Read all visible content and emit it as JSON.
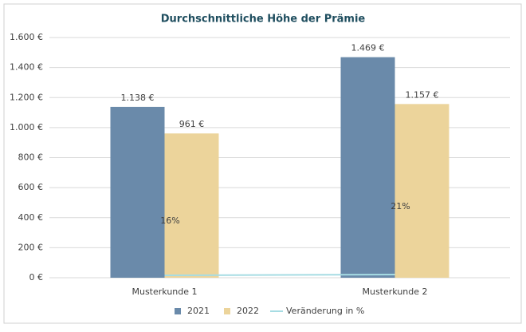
{
  "chart_data": {
    "type": "bar",
    "title": "Durchschnittliche Höhe der Prämie",
    "categories": [
      "Musterkunde 1",
      "Musterkunde 2"
    ],
    "series": [
      {
        "name": "2021",
        "color": "#6a8aaa",
        "values": [
          1138,
          1469
        ],
        "value_labels": [
          "1.138 €",
          "1.469 €"
        ]
      },
      {
        "name": "2022",
        "color": "#ecd49b",
        "values": [
          961,
          1157
        ],
        "value_labels": [
          "961 €",
          "1.157 €"
        ]
      },
      {
        "name": "Veränderung in %",
        "type": "line",
        "color": "#a6dce3",
        "values": [
          16,
          21
        ],
        "value_labels": [
          "16%",
          "21%"
        ]
      }
    ],
    "ylim": [
      0,
      1600
    ],
    "yticks": [
      {
        "value": 0,
        "label": "0 €"
      },
      {
        "value": 200,
        "label": "200 €"
      },
      {
        "value": 400,
        "label": "400 €"
      },
      {
        "value": 600,
        "label": "600 €"
      },
      {
        "value": 800,
        "label": "800 €"
      },
      {
        "value": 1000,
        "label": "1.000 €"
      },
      {
        "value": 1200,
        "label": "1.200 €"
      },
      {
        "value": 1400,
        "label": "1.400 €"
      },
      {
        "value": 1600,
        "label": "1.600 €"
      }
    ],
    "grid": true,
    "legend": "bottom"
  }
}
